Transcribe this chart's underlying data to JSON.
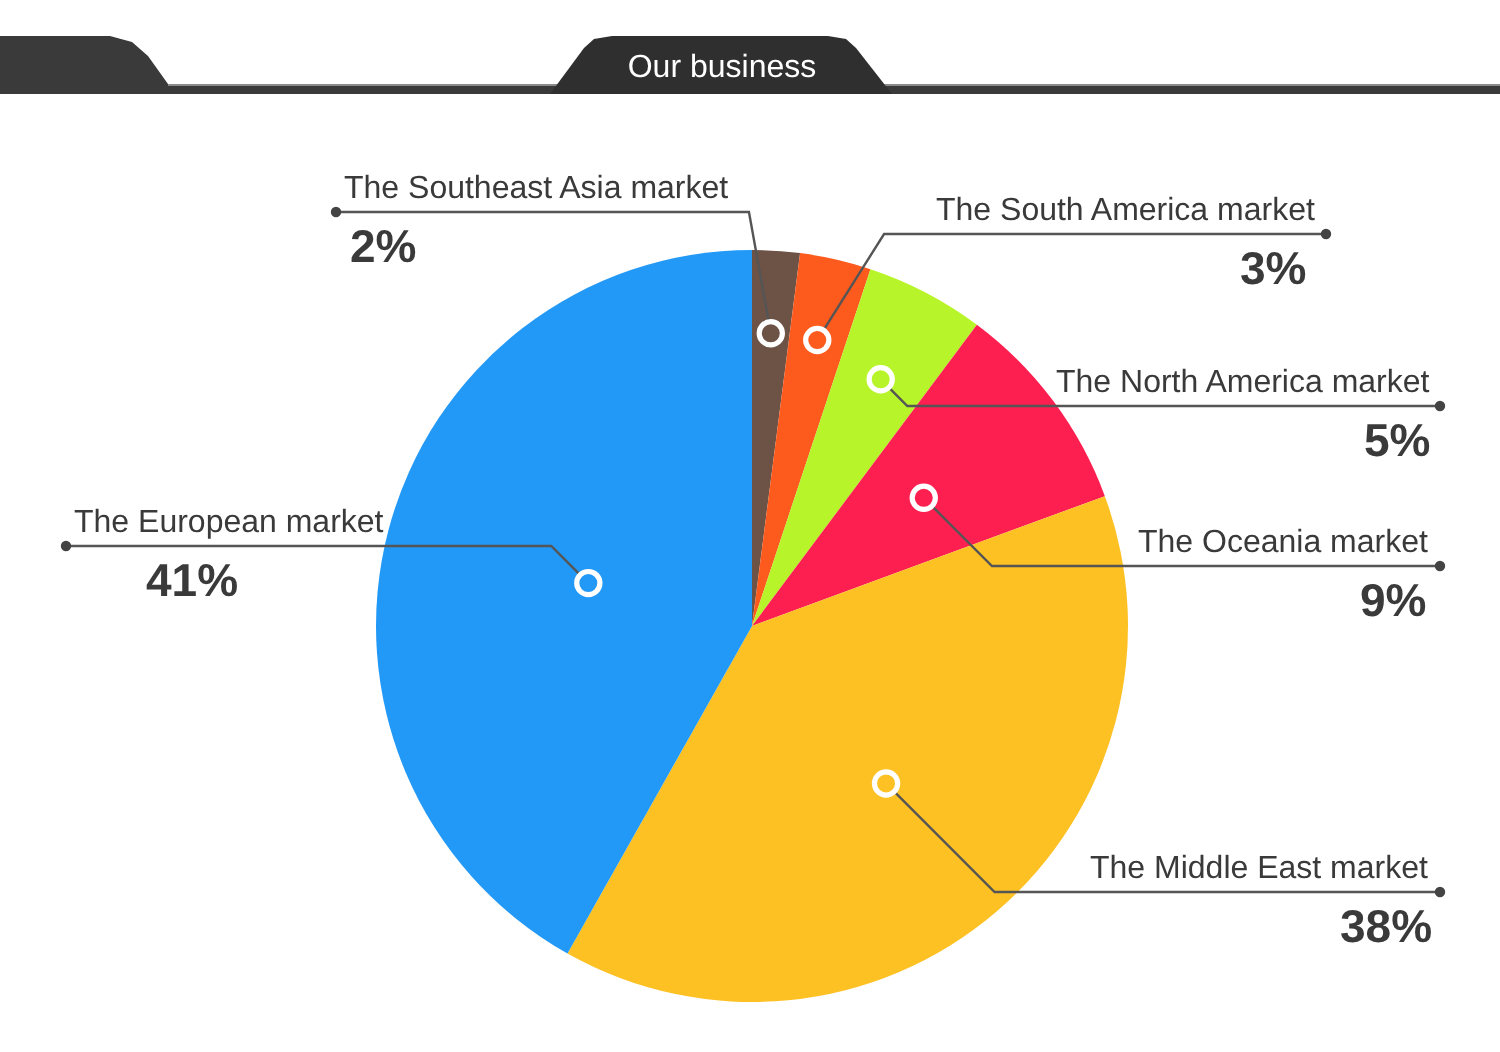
{
  "chart_data": {
    "type": "pie",
    "title": "Our business",
    "categories": [
      "The Southeast Asia market",
      "The South America market",
      "The North America market",
      "The Oceania market",
      "The Middle East market",
      "The European market"
    ],
    "values": [
      2,
      3,
      5,
      9,
      38,
      41
    ],
    "colors": [
      "#6d5246",
      "#fd5a1e",
      "#b8f42a",
      "#fd1f50",
      "#fdc124",
      "#2399f7"
    ],
    "value_labels": [
      "2%",
      "3%",
      "5%",
      "9%",
      "38%",
      "41%"
    ]
  }
}
